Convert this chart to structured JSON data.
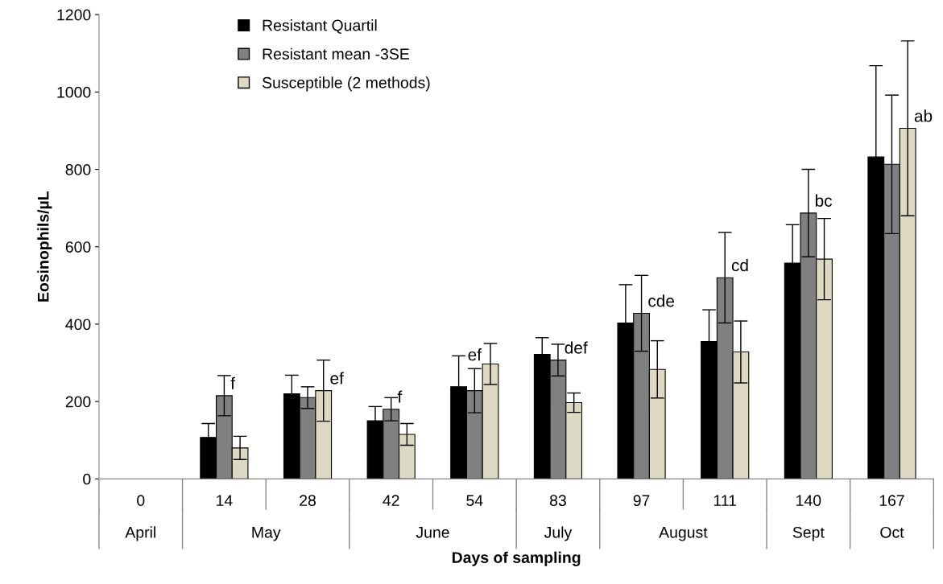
{
  "chart_data": {
    "type": "bar",
    "xlabel": "Days of sampling",
    "ylabel": "Eosinophils/µL",
    "categories": [
      "0",
      "14",
      "28",
      "42",
      "54",
      "83",
      "97",
      "111",
      "140",
      "167"
    ],
    "series": [
      {
        "name": "Resistant Quartil",
        "color": "#000000",
        "values": [
          null,
          107,
          220,
          150,
          238,
          322,
          403,
          355,
          558,
          832
        ],
        "errors": [
          null,
          36,
          48,
          37,
          80,
          43,
          99,
          82,
          99,
          236
        ]
      },
      {
        "name": "Resistant mean -3SE",
        "color": "#808080",
        "values": [
          null,
          215,
          210,
          180,
          228,
          307,
          428,
          520,
          687,
          813
        ],
        "errors": [
          null,
          52,
          28,
          30,
          57,
          41,
          98,
          117,
          113,
          179
        ]
      },
      {
        "name": "Susceptible (2 methods)",
        "color": "#ddd9c3",
        "values": [
          null,
          80,
          228,
          115,
          297,
          197,
          283,
          328,
          568,
          906
        ],
        "errors": [
          null,
          30,
          79,
          28,
          53,
          25,
          74,
          80,
          105,
          226
        ]
      }
    ],
    "annotations": [
      {
        "text": "f",
        "x": "14",
        "y": 215
      },
      {
        "text": "ef",
        "x": "28",
        "y": 228
      },
      {
        "text": "f",
        "x": "42",
        "y": 180
      },
      {
        "text": "ef",
        "x": "54",
        "y": 228
      },
      {
        "text": "def",
        "x": "83",
        "y": 307
      },
      {
        "text": "cde",
        "x": "97",
        "y": 428
      },
      {
        "text": "cd",
        "x": "111",
        "y": 520
      },
      {
        "text": "bc",
        "x": "140",
        "y": 687
      },
      {
        "text": "ab",
        "x": "167",
        "y": 906
      },
      "April",
      "May",
      "June",
      "July",
      "August",
      "Sept",
      "Oct"
    ],
    "ylim": [
      0,
      1200
    ],
    "yticks": [
      0,
      200,
      400,
      600,
      800,
      1000,
      1200
    ],
    "grid": false,
    "legend": "top left"
  }
}
